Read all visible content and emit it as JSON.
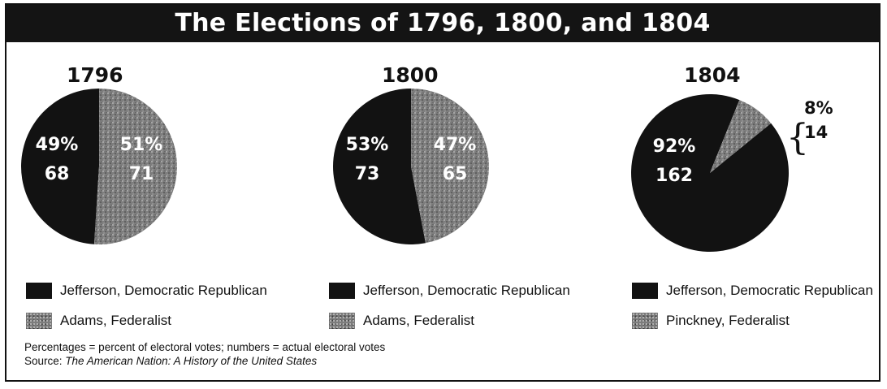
{
  "chart_data": {
    "type": "pie",
    "title": "The Elections of 1796, 1800, and 1804",
    "charts": [
      {
        "year": "1796",
        "slices": [
          {
            "name": "Jefferson, Democratic Republican",
            "percent": 49,
            "votes": 68,
            "percent_label": "49%",
            "votes_label": "68"
          },
          {
            "name": "Adams, Federalist",
            "percent": 51,
            "votes": 71,
            "percent_label": "51%",
            "votes_label": "71"
          }
        ]
      },
      {
        "year": "1800",
        "slices": [
          {
            "name": "Jefferson, Democratic Republican",
            "percent": 53,
            "votes": 73,
            "percent_label": "53%",
            "votes_label": "73"
          },
          {
            "name": "Adams, Federalist",
            "percent": 47,
            "votes": 65,
            "percent_label": "47%",
            "votes_label": "65"
          }
        ]
      },
      {
        "year": "1804",
        "slices": [
          {
            "name": "Jefferson, Democratic Republican",
            "percent": 92,
            "votes": 162,
            "percent_label": "92%",
            "votes_label": "162"
          },
          {
            "name": "Pinckney, Federalist",
            "percent": 8,
            "votes": 14,
            "percent_label": "8%",
            "votes_label": "14"
          }
        ]
      }
    ]
  },
  "colors": {
    "dark": "#121212",
    "gray": "#7d7d7d"
  },
  "notes": {
    "line1": "Percentages = percent of electoral votes; numbers = actual electoral votes",
    "source_prefix": "Source: ",
    "source_title": "The American Nation: A History of the United States"
  }
}
